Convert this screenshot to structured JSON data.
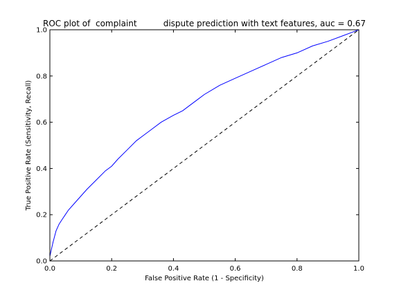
{
  "chart_data": {
    "type": "line",
    "title": "ROC plot of  complaint          dispute prediction with text features, auc = 0.67",
    "xlabel": "False Positive Rate (1 - Specificity)",
    "ylabel": "True Positive Rate (Sensitivity, Recall)",
    "xlim": [
      0,
      1
    ],
    "ylim": [
      0,
      1
    ],
    "xticks": [
      "0.0",
      "0.2",
      "0.4",
      "0.6",
      "0.8",
      "1.0"
    ],
    "yticks": [
      "0.0",
      "0.2",
      "0.4",
      "0.6",
      "0.8",
      "1.0"
    ],
    "grid": false,
    "series": [
      {
        "color": "#0000ff",
        "style": "solid",
        "x": [
          0.0,
          0.005,
          0.01,
          0.02,
          0.03,
          0.04,
          0.05,
          0.06,
          0.08,
          0.1,
          0.12,
          0.15,
          0.18,
          0.2,
          0.22,
          0.25,
          0.28,
          0.3,
          0.33,
          0.36,
          0.4,
          0.43,
          0.45,
          0.48,
          0.5,
          0.55,
          0.6,
          0.65,
          0.7,
          0.75,
          0.8,
          0.85,
          0.9,
          0.95,
          1.0
        ],
        "y": [
          0.02,
          0.05,
          0.08,
          0.13,
          0.16,
          0.18,
          0.2,
          0.22,
          0.25,
          0.28,
          0.31,
          0.35,
          0.39,
          0.41,
          0.44,
          0.48,
          0.52,
          0.54,
          0.57,
          0.6,
          0.63,
          0.65,
          0.67,
          0.7,
          0.72,
          0.76,
          0.79,
          0.82,
          0.85,
          0.88,
          0.9,
          0.93,
          0.95,
          0.975,
          1.0
        ]
      },
      {
        "color": "#000000",
        "style": "dashed",
        "x": [
          0,
          1
        ],
        "y": [
          0,
          1
        ]
      }
    ]
  }
}
